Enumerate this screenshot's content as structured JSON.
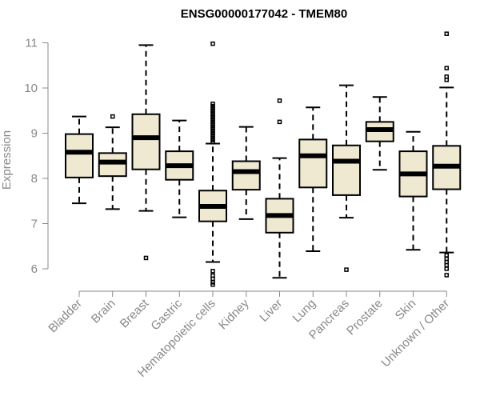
{
  "chart_data": {
    "type": "box",
    "title": "ENSG00000177042 - TMEM80",
    "ylabel": "Expression",
    "xlabel": "",
    "ylim": [
      5.5,
      11.3
    ],
    "yticks": [
      6,
      7,
      8,
      9,
      10,
      11
    ],
    "grid": false,
    "box_fill": "#efe9d2",
    "categories": [
      "Bladder",
      "Brain",
      "Breast",
      "Gastric",
      "Hematopoietic cells",
      "Kidney",
      "Liver",
      "Lung",
      "Pancreas",
      "Prostate",
      "Skin",
      "Unknown / Other"
    ],
    "boxes": [
      {
        "whisker_low": 7.45,
        "q1": 8.02,
        "median": 8.58,
        "q3": 8.98,
        "whisker_high": 9.37,
        "outliers": []
      },
      {
        "whisker_low": 7.32,
        "q1": 8.05,
        "median": 8.36,
        "q3": 8.56,
        "whisker_high": 9.13,
        "outliers": [
          9.37
        ]
      },
      {
        "whisker_low": 7.28,
        "q1": 8.2,
        "median": 8.9,
        "q3": 9.42,
        "whisker_high": 10.95,
        "outliers": [
          6.24
        ]
      },
      {
        "whisker_low": 7.14,
        "q1": 7.97,
        "median": 8.28,
        "q3": 8.6,
        "whisker_high": 9.28,
        "outliers": []
      },
      {
        "whisker_low": 6.15,
        "q1": 7.05,
        "median": 7.38,
        "q3": 7.73,
        "whisker_high": 8.77,
        "outliers": [
          10.98,
          9.65,
          9.6,
          9.55,
          9.5,
          9.45,
          9.4,
          9.35,
          9.3,
          9.25,
          9.2,
          9.15,
          9.1,
          9.05,
          9.0,
          8.95,
          8.9,
          8.85,
          8.8,
          5.95,
          5.85,
          5.78,
          5.7,
          5.65
        ]
      },
      {
        "whisker_low": 7.1,
        "q1": 7.75,
        "median": 8.15,
        "q3": 8.38,
        "whisker_high": 9.14,
        "outliers": []
      },
      {
        "whisker_low": 5.8,
        "q1": 6.8,
        "median": 7.18,
        "q3": 7.55,
        "whisker_high": 8.45,
        "outliers": [
          9.72,
          9.25
        ]
      },
      {
        "whisker_low": 6.39,
        "q1": 7.8,
        "median": 8.5,
        "q3": 8.86,
        "whisker_high": 9.57,
        "outliers": []
      },
      {
        "whisker_low": 7.13,
        "q1": 7.63,
        "median": 8.38,
        "q3": 8.73,
        "whisker_high": 10.06,
        "outliers": [
          5.98
        ]
      },
      {
        "whisker_low": 8.19,
        "q1": 8.82,
        "median": 9.08,
        "q3": 9.25,
        "whisker_high": 9.8,
        "outliers": []
      },
      {
        "whisker_low": 6.42,
        "q1": 7.6,
        "median": 8.1,
        "q3": 8.6,
        "whisker_high": 9.03,
        "outliers": []
      },
      {
        "whisker_low": 6.36,
        "q1": 7.76,
        "median": 8.27,
        "q3": 8.72,
        "whisker_high": 10.01,
        "outliers": [
          11.2,
          10.44,
          10.25,
          10.18,
          6.3,
          6.22,
          6.15,
          6.08,
          6.0,
          5.86
        ]
      }
    ]
  }
}
